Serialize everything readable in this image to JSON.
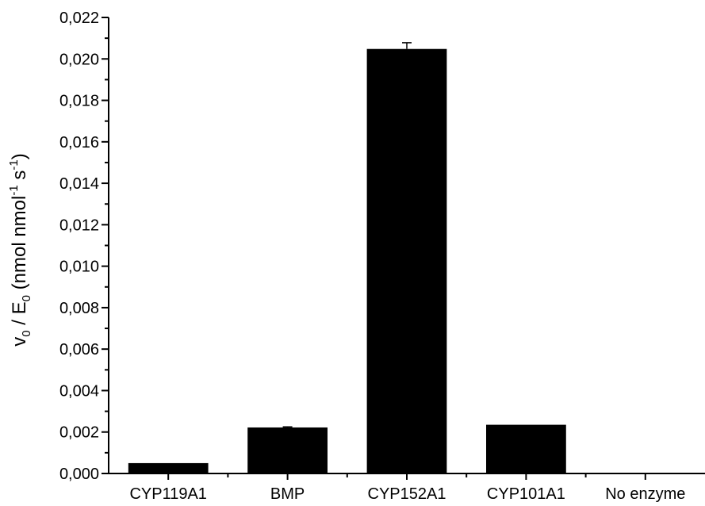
{
  "chart_data": {
    "type": "bar",
    "title": "",
    "xlabel": "",
    "ylabel": {
      "parts": [
        {
          "text": "v"
        },
        {
          "text": "0",
          "sub": true
        },
        {
          "text": " / E"
        },
        {
          "text": "0",
          "sub": true
        },
        {
          "text": " (nmol nmol"
        },
        {
          "text": "-1",
          "sup": true
        },
        {
          "text": " s"
        },
        {
          "text": "-1",
          "sup": true
        },
        {
          "text": ")"
        }
      ]
    },
    "categories": [
      "CYP119A1",
      "BMP",
      "CYP152A1",
      "CYP101A1",
      "No enzyme"
    ],
    "values": [
      0.0005,
      0.00222,
      0.02048,
      0.00235,
      0.0
    ],
    "errors": [
      0.0,
      3e-05,
      0.0003,
      0.0,
      0.0
    ],
    "ylim": [
      0,
      0.022
    ],
    "yticks": [
      "0,000",
      "0,002",
      "0,004",
      "0,006",
      "0,008",
      "0,010",
      "0,012",
      "0,014",
      "0,016",
      "0,018",
      "0,020",
      "0,022"
    ],
    "ytick_values": [
      0,
      0.002,
      0.004,
      0.006,
      0.008,
      0.01,
      0.012,
      0.014,
      0.016,
      0.018,
      0.02,
      0.022
    ],
    "bar_color": "#000000",
    "grid": false,
    "legend": "none"
  }
}
